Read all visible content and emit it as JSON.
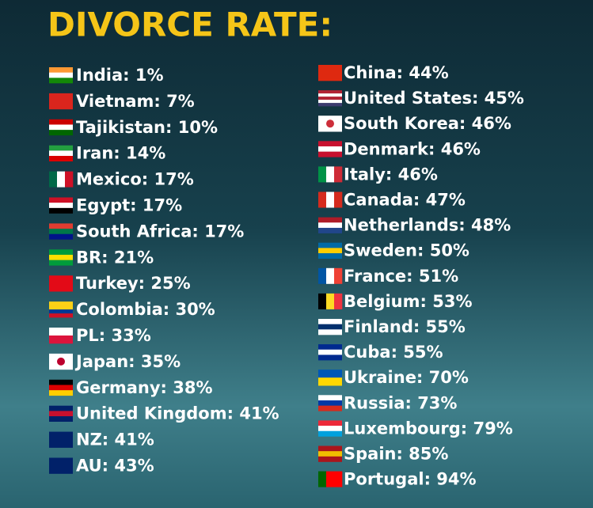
{
  "title": "DIVORCE RATE:",
  "left": [
    "India: 1%",
    "Vietnam: 7%",
    "Tajikistan: 10%",
    "Iran: 14%",
    "Mexico: 17%",
    "Egypt: 17%",
    "South Africa: 17%",
    "BR: 21%",
    "Turkey: 25%",
    "Colombia: 30%",
    "PL: 33%",
    "Japan: 35%",
    "Germany: 38%",
    "United Kingdom: 41%",
    "NZ: 41%",
    "AU: 43%"
  ],
  "right": [
    "China: 44%",
    "United States: 45%",
    "South Korea: 46%",
    "Denmark: 46%",
    "Italy: 46%",
    "Canada: 47%",
    "Netherlands: 48%",
    "Sweden: 50%",
    "France: 51%",
    "Belgium: 53%",
    "Finland: 55%",
    "Cuba: 55%",
    "Ukraine: 70%",
    "Russia: 73%",
    "Luxembourg: 79%",
    "Spain: 85%",
    "Portugal: 94%"
  ]
}
